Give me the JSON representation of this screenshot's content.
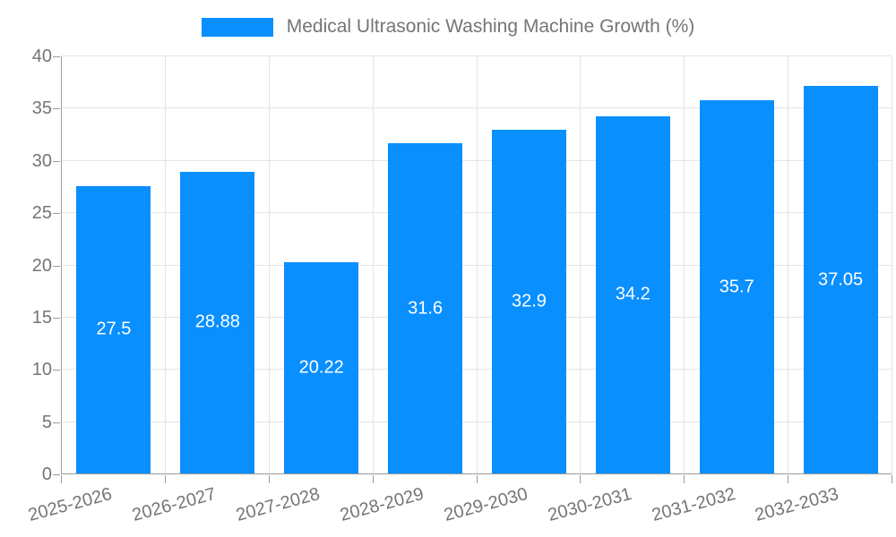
{
  "chart_data": {
    "type": "bar",
    "title": "Medical Ultrasonic Washing Machine Growth (%)",
    "legend_entries": [
      "Medical Ultrasonic Washing Machine Growth (%)"
    ],
    "legend_position": "top-center",
    "categories": [
      "2025-2026",
      "2026-2027",
      "2027-2028",
      "2028-2029",
      "2029-2030",
      "2030-2031",
      "2031-2032",
      "2032-2033"
    ],
    "values": [
      27.5,
      28.88,
      20.22,
      31.6,
      32.9,
      34.2,
      35.7,
      37.05
    ],
    "value_labels": [
      "27.5",
      "28.88",
      "20.22",
      "31.6",
      "32.9",
      "34.2",
      "35.7",
      "37.05"
    ],
    "xlabel": "",
    "ylabel": "",
    "ylim": [
      0,
      40
    ],
    "ytick_step": 5,
    "ytick_labels": [
      "0",
      "5",
      "10",
      "15",
      "20",
      "25",
      "30",
      "35",
      "40"
    ],
    "grid": true,
    "colors": {
      "bar": "#0A8FFF",
      "axis": "#9A9A9A",
      "gridline": "#E4E4E4",
      "axis_label": "#757575",
      "value_label": "#FFFFFF",
      "background": "#FFFFFF"
    }
  }
}
